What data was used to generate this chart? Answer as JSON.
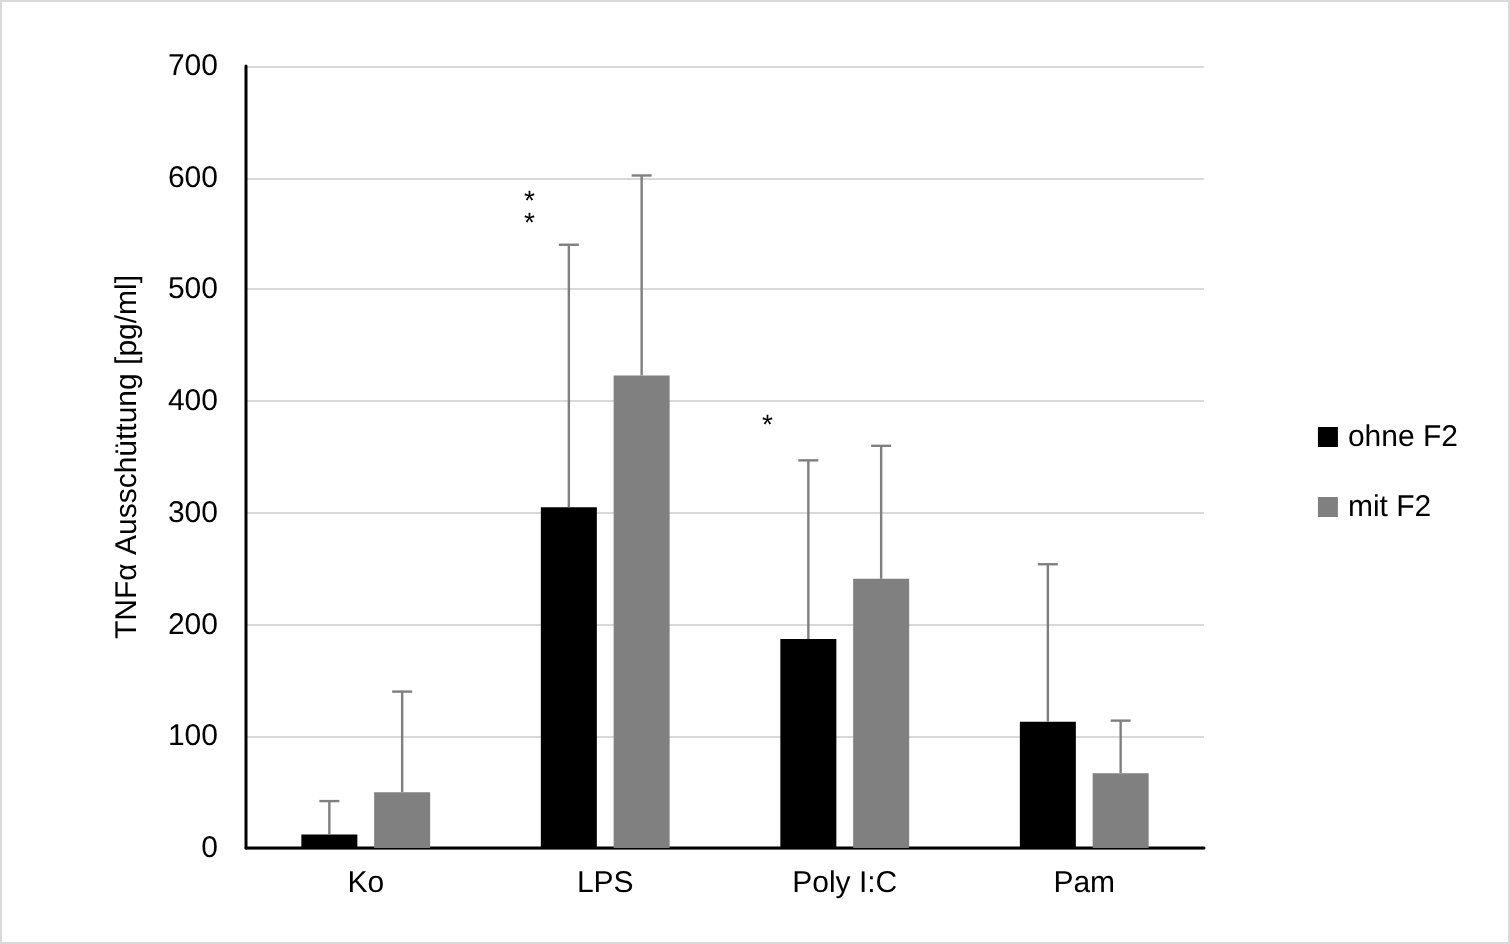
{
  "chart_data": {
    "type": "bar",
    "ylabel": "TNFα Ausschüttung [pg/ml]",
    "categories": [
      "Ko",
      "LPS",
      "Poly I:C",
      "Pam"
    ],
    "series": [
      {
        "name": "ohne F2",
        "color": "#000000",
        "values": [
          12,
          305,
          187,
          113
        ],
        "errors": [
          [
            12,
            42
          ],
          [
            305,
            540
          ],
          [
            187,
            347
          ],
          [
            113,
            254
          ]
        ]
      },
      {
        "name": "mit F2",
        "color": "#808080",
        "values": [
          50,
          423,
          241,
          67
        ],
        "errors": [
          [
            50,
            140
          ],
          [
            423,
            602
          ],
          [
            241,
            360
          ],
          [
            67,
            114
          ]
        ]
      }
    ],
    "annotations": [
      "**",
      "*"
    ],
    "ylim": [
      0,
      700
    ],
    "yticks": [
      0,
      100,
      200,
      300,
      400,
      500,
      600,
      700
    ],
    "grid": "y",
    "legend": "right"
  }
}
